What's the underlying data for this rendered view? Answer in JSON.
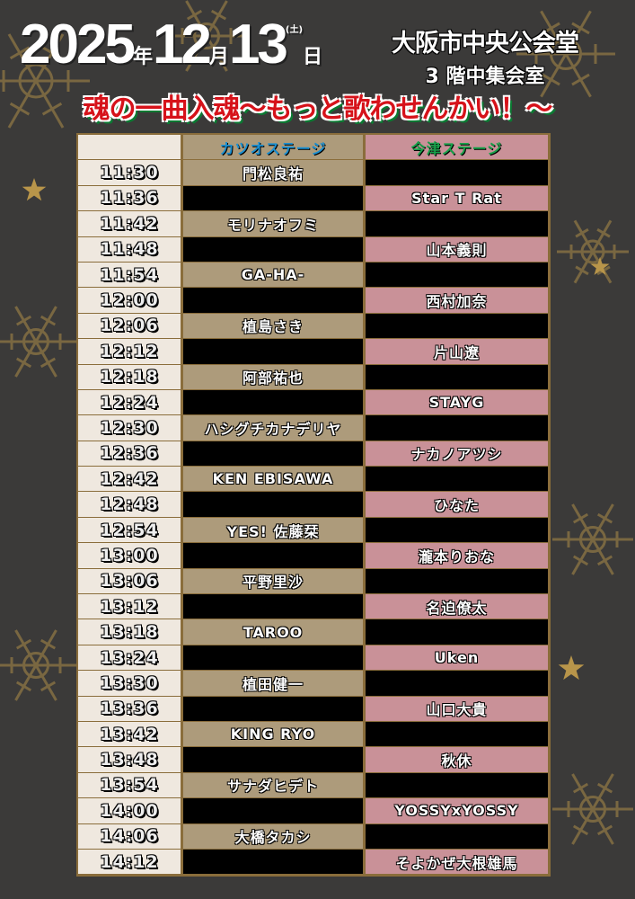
{
  "header": {
    "year": "2025",
    "year_unit": "年",
    "month": "12",
    "month_unit": "月",
    "day": "13",
    "day_unit": "日",
    "weekday": "(土)",
    "venue": "大阪市中央公会堂",
    "room": "3 階中集会室",
    "catchphrase": "魂の一曲入魂～もっと歌わせんかい！～"
  },
  "colors": {
    "background": "#3b3a39",
    "gold": "#b8954a",
    "katsuo_stage": "#ad9b7b",
    "imazu_stage": "#c99198",
    "time_col": "#efe8df",
    "title_red": "#d6121a",
    "title_green": "#0b7a32"
  },
  "decoration_icon": "snowflake-icon",
  "table": {
    "stages": [
      "カツオステージ",
      "今津ステージ"
    ],
    "rows": [
      {
        "time": "11:30",
        "katsuo": "門松良祐",
        "imazu": ""
      },
      {
        "time": "11:36",
        "katsuo": "",
        "imazu": "Star T Rat"
      },
      {
        "time": "11:42",
        "katsuo": "モリナオフミ",
        "imazu": ""
      },
      {
        "time": "11:48",
        "katsuo": "",
        "imazu": "山本義則"
      },
      {
        "time": "11:54",
        "katsuo": "GA-HA-",
        "imazu": ""
      },
      {
        "time": "12:00",
        "katsuo": "",
        "imazu": "西村加奈"
      },
      {
        "time": "12:06",
        "katsuo": "植島さき",
        "imazu": ""
      },
      {
        "time": "12:12",
        "katsuo": "",
        "imazu": "片山遼"
      },
      {
        "time": "12:18",
        "katsuo": "阿部祐也",
        "imazu": ""
      },
      {
        "time": "12:24",
        "katsuo": "",
        "imazu": "STAYG"
      },
      {
        "time": "12:30",
        "katsuo": "ハシグチカナデリヤ",
        "imazu": ""
      },
      {
        "time": "12:36",
        "katsuo": "",
        "imazu": "ナカノアツシ"
      },
      {
        "time": "12:42",
        "katsuo": "KEN EBISAWA",
        "imazu": ""
      },
      {
        "time": "12:48",
        "katsuo": "",
        "imazu": "ひなた"
      },
      {
        "time": "12:54",
        "katsuo": "YES! 佐藤栞",
        "imazu": ""
      },
      {
        "time": "13:00",
        "katsuo": "",
        "imazu": "瀧本りおな"
      },
      {
        "time": "13:06",
        "katsuo": "平野里沙",
        "imazu": ""
      },
      {
        "time": "13:12",
        "katsuo": "",
        "imazu": "名迫僚太"
      },
      {
        "time": "13:18",
        "katsuo": "TAROO",
        "imazu": ""
      },
      {
        "time": "13:24",
        "katsuo": "",
        "imazu": "Uken"
      },
      {
        "time": "13:30",
        "katsuo": "植田健一",
        "imazu": ""
      },
      {
        "time": "13:36",
        "katsuo": "",
        "imazu": "山口大貴"
      },
      {
        "time": "13:42",
        "katsuo": "KING RYO",
        "imazu": ""
      },
      {
        "time": "13:48",
        "katsuo": "",
        "imazu": "秋休"
      },
      {
        "time": "13:54",
        "katsuo": "サナダヒデト",
        "imazu": ""
      },
      {
        "time": "14:00",
        "katsuo": "",
        "imazu": "YOSSYxYOSSY"
      },
      {
        "time": "14:06",
        "katsuo": "大橋タカシ",
        "imazu": ""
      },
      {
        "time": "14:12",
        "katsuo": "",
        "imazu": "そよかぜ大根雄馬"
      }
    ]
  }
}
